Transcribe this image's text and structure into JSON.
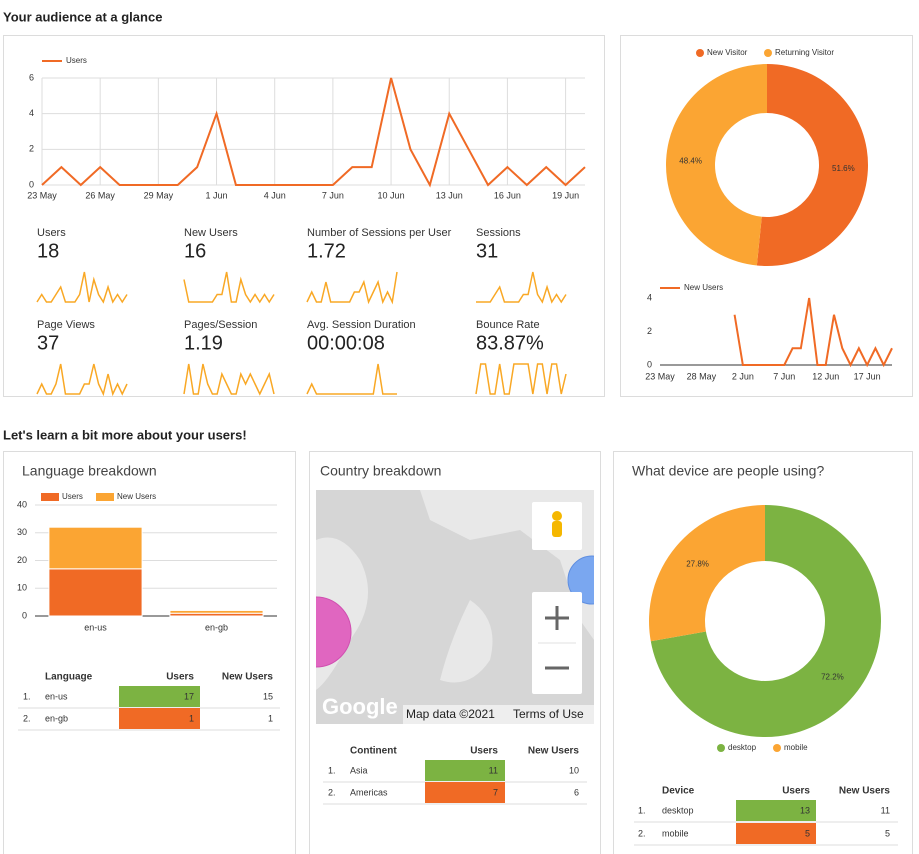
{
  "sections": [
    "Your audience at a glance",
    "Let's learn a bit more about your users!"
  ],
  "chart_data": [
    {
      "type": "line",
      "categories": [
        "23 May",
        null,
        null,
        "26 May",
        null,
        null,
        "29 May",
        null,
        null,
        "1 Jun",
        null,
        null,
        "4 Jun",
        null,
        null,
        "7 Jun",
        null,
        null,
        "10 Jun",
        null,
        null,
        "13 Jun",
        null,
        null,
        "16 Jun",
        null,
        null,
        "19 Jun",
        null
      ],
      "series": [
        {
          "name": "Users",
          "color": "#f06a25",
          "values": [
            0,
            1,
            0,
            1,
            0,
            0,
            0,
            0,
            1,
            4,
            0,
            0,
            0,
            0,
            0,
            0,
            1,
            1,
            6,
            2,
            0,
            4,
            2,
            0,
            1,
            0,
            1,
            0,
            1
          ]
        }
      ],
      "ylim": [
        0,
        6
      ],
      "yticks": [
        0,
        2,
        4,
        6
      ],
      "grid": true,
      "legend": "top-left"
    },
    {
      "type": "pie",
      "categories": [
        "New Visitor",
        "Returning Visitor"
      ],
      "values": [
        51.6,
        48.4
      ],
      "value_labels": [
        "51.6%",
        "48.4%"
      ],
      "colors": [
        "#f06a25",
        "#fba533"
      ],
      "donut": true,
      "legend": "top"
    },
    {
      "type": "line",
      "categories": [
        "23 May",
        null,
        null,
        null,
        null,
        "28 May",
        null,
        null,
        null,
        null,
        "2 Jun",
        null,
        null,
        null,
        null,
        "7 Jun",
        null,
        null,
        null,
        null,
        "12 Jun",
        null,
        null,
        null,
        null,
        "17 Jun",
        null,
        null,
        null
      ],
      "series": [
        {
          "name": "New Users",
          "color": "#f06a25",
          "values": [
            null,
            null,
            null,
            null,
            null,
            null,
            null,
            null,
            null,
            3,
            0,
            0,
            0,
            0,
            0,
            0,
            1,
            1,
            4,
            0,
            0,
            3,
            1,
            0,
            1,
            0,
            1,
            0,
            1
          ]
        }
      ],
      "ylim": [
        0,
        4
      ],
      "yticks": [
        0,
        2,
        4
      ],
      "grid": false,
      "legend": "top-left"
    },
    {
      "type": "bar",
      "title": "Language breakdown",
      "categories": [
        "en-us",
        "en-gb"
      ],
      "stacked": true,
      "series": [
        {
          "name": "Users",
          "color": "#f06a25",
          "values": [
            17,
            1
          ]
        },
        {
          "name": "New Users",
          "color": "#fba533",
          "values": [
            15,
            1
          ]
        }
      ],
      "ylim": [
        0,
        40
      ],
      "yticks": [
        0,
        10,
        20,
        30,
        40
      ],
      "grid": true,
      "legend": "top-left"
    },
    {
      "type": "pie",
      "title": "What device are people using?",
      "categories": [
        "desktop",
        "mobile"
      ],
      "values": [
        72.2,
        27.8
      ],
      "value_labels": [
        "72.2%",
        "27.8%"
      ],
      "colors": [
        "#7cb342",
        "#fba533"
      ],
      "donut": true,
      "legend": "bottom"
    }
  ],
  "kpis": [
    {
      "label": "Users",
      "value": 18,
      "trend": [
        0,
        1,
        0,
        0,
        1,
        2,
        0,
        0,
        0,
        1,
        4,
        0,
        3,
        1,
        0,
        2,
        0,
        1,
        0,
        1
      ]
    },
    {
      "label": "New Users",
      "value": 16,
      "trend": [
        3,
        0,
        0,
        0,
        0,
        0,
        0,
        1,
        1,
        4,
        0,
        0,
        3,
        1,
        0,
        1,
        0,
        1,
        0,
        1
      ]
    },
    {
      "label": "Number of Sessions per User",
      "value": 1.72,
      "trend": [
        0,
        1,
        0,
        0,
        2,
        0,
        0,
        0,
        0,
        0,
        1,
        1,
        2,
        0,
        1,
        2,
        0,
        1,
        0,
        3
      ]
    },
    {
      "label": "Sessions",
      "value": 31,
      "trend": [
        0,
        0,
        0,
        0,
        1,
        2,
        0,
        0,
        0,
        0,
        1,
        1,
        4,
        1,
        0,
        2,
        0,
        1,
        0,
        1
      ]
    },
    {
      "label": "Page Views",
      "value": 37,
      "trend": [
        0,
        1,
        0,
        0,
        1,
        3,
        0,
        0,
        0,
        0,
        1,
        1,
        3,
        1,
        0,
        2,
        0,
        1,
        0,
        1
      ]
    },
    {
      "label": "Pages/Session",
      "value": 1.19,
      "trend": [
        0,
        3,
        0,
        0,
        3,
        1,
        0,
        0,
        2,
        1,
        0,
        0,
        2,
        1,
        2,
        1,
        0,
        1,
        2,
        0
      ]
    },
    {
      "label": "Avg. Session Duration",
      "value": "00:00:08",
      "trend": [
        0,
        1,
        0,
        0,
        0,
        0,
        0,
        0,
        0,
        0,
        0,
        0,
        0,
        0,
        0,
        3,
        0,
        0,
        0,
        0
      ]
    },
    {
      "label": "Bounce Rate",
      "value": "83.87%",
      "trend": [
        0,
        3,
        3,
        0,
        0,
        3,
        0,
        0,
        3,
        3,
        3,
        3,
        0,
        3,
        3,
        0,
        3,
        3,
        0,
        2
      ]
    }
  ],
  "language_table": {
    "headers": [
      "Language",
      "Users",
      "New Users"
    ],
    "rows": [
      [
        "1.",
        "en-us",
        17,
        15
      ],
      [
        "2.",
        "en-gb",
        1,
        1
      ]
    ],
    "highlight_colors": [
      "#7cb342",
      "#f06a25"
    ]
  },
  "country_map": {
    "title": "Country breakdown",
    "logo": "Google",
    "attribution": "Map data ©2021",
    "terms": "Terms of Use"
  },
  "continent_table": {
    "headers": [
      "Continent",
      "Users",
      "New Users"
    ],
    "rows": [
      [
        "1.",
        "Asia",
        11,
        10
      ],
      [
        "2.",
        "Americas",
        7,
        6
      ]
    ],
    "highlight_colors": [
      "#7cb342",
      "#f06a25"
    ]
  },
  "device_table": {
    "headers": [
      "Device",
      "Users",
      "New Users"
    ],
    "rows": [
      [
        "1.",
        "desktop",
        13,
        11
      ],
      [
        "2.",
        "mobile",
        5,
        5
      ]
    ],
    "highlight_colors": [
      "#7cb342",
      "#f06a25"
    ]
  }
}
